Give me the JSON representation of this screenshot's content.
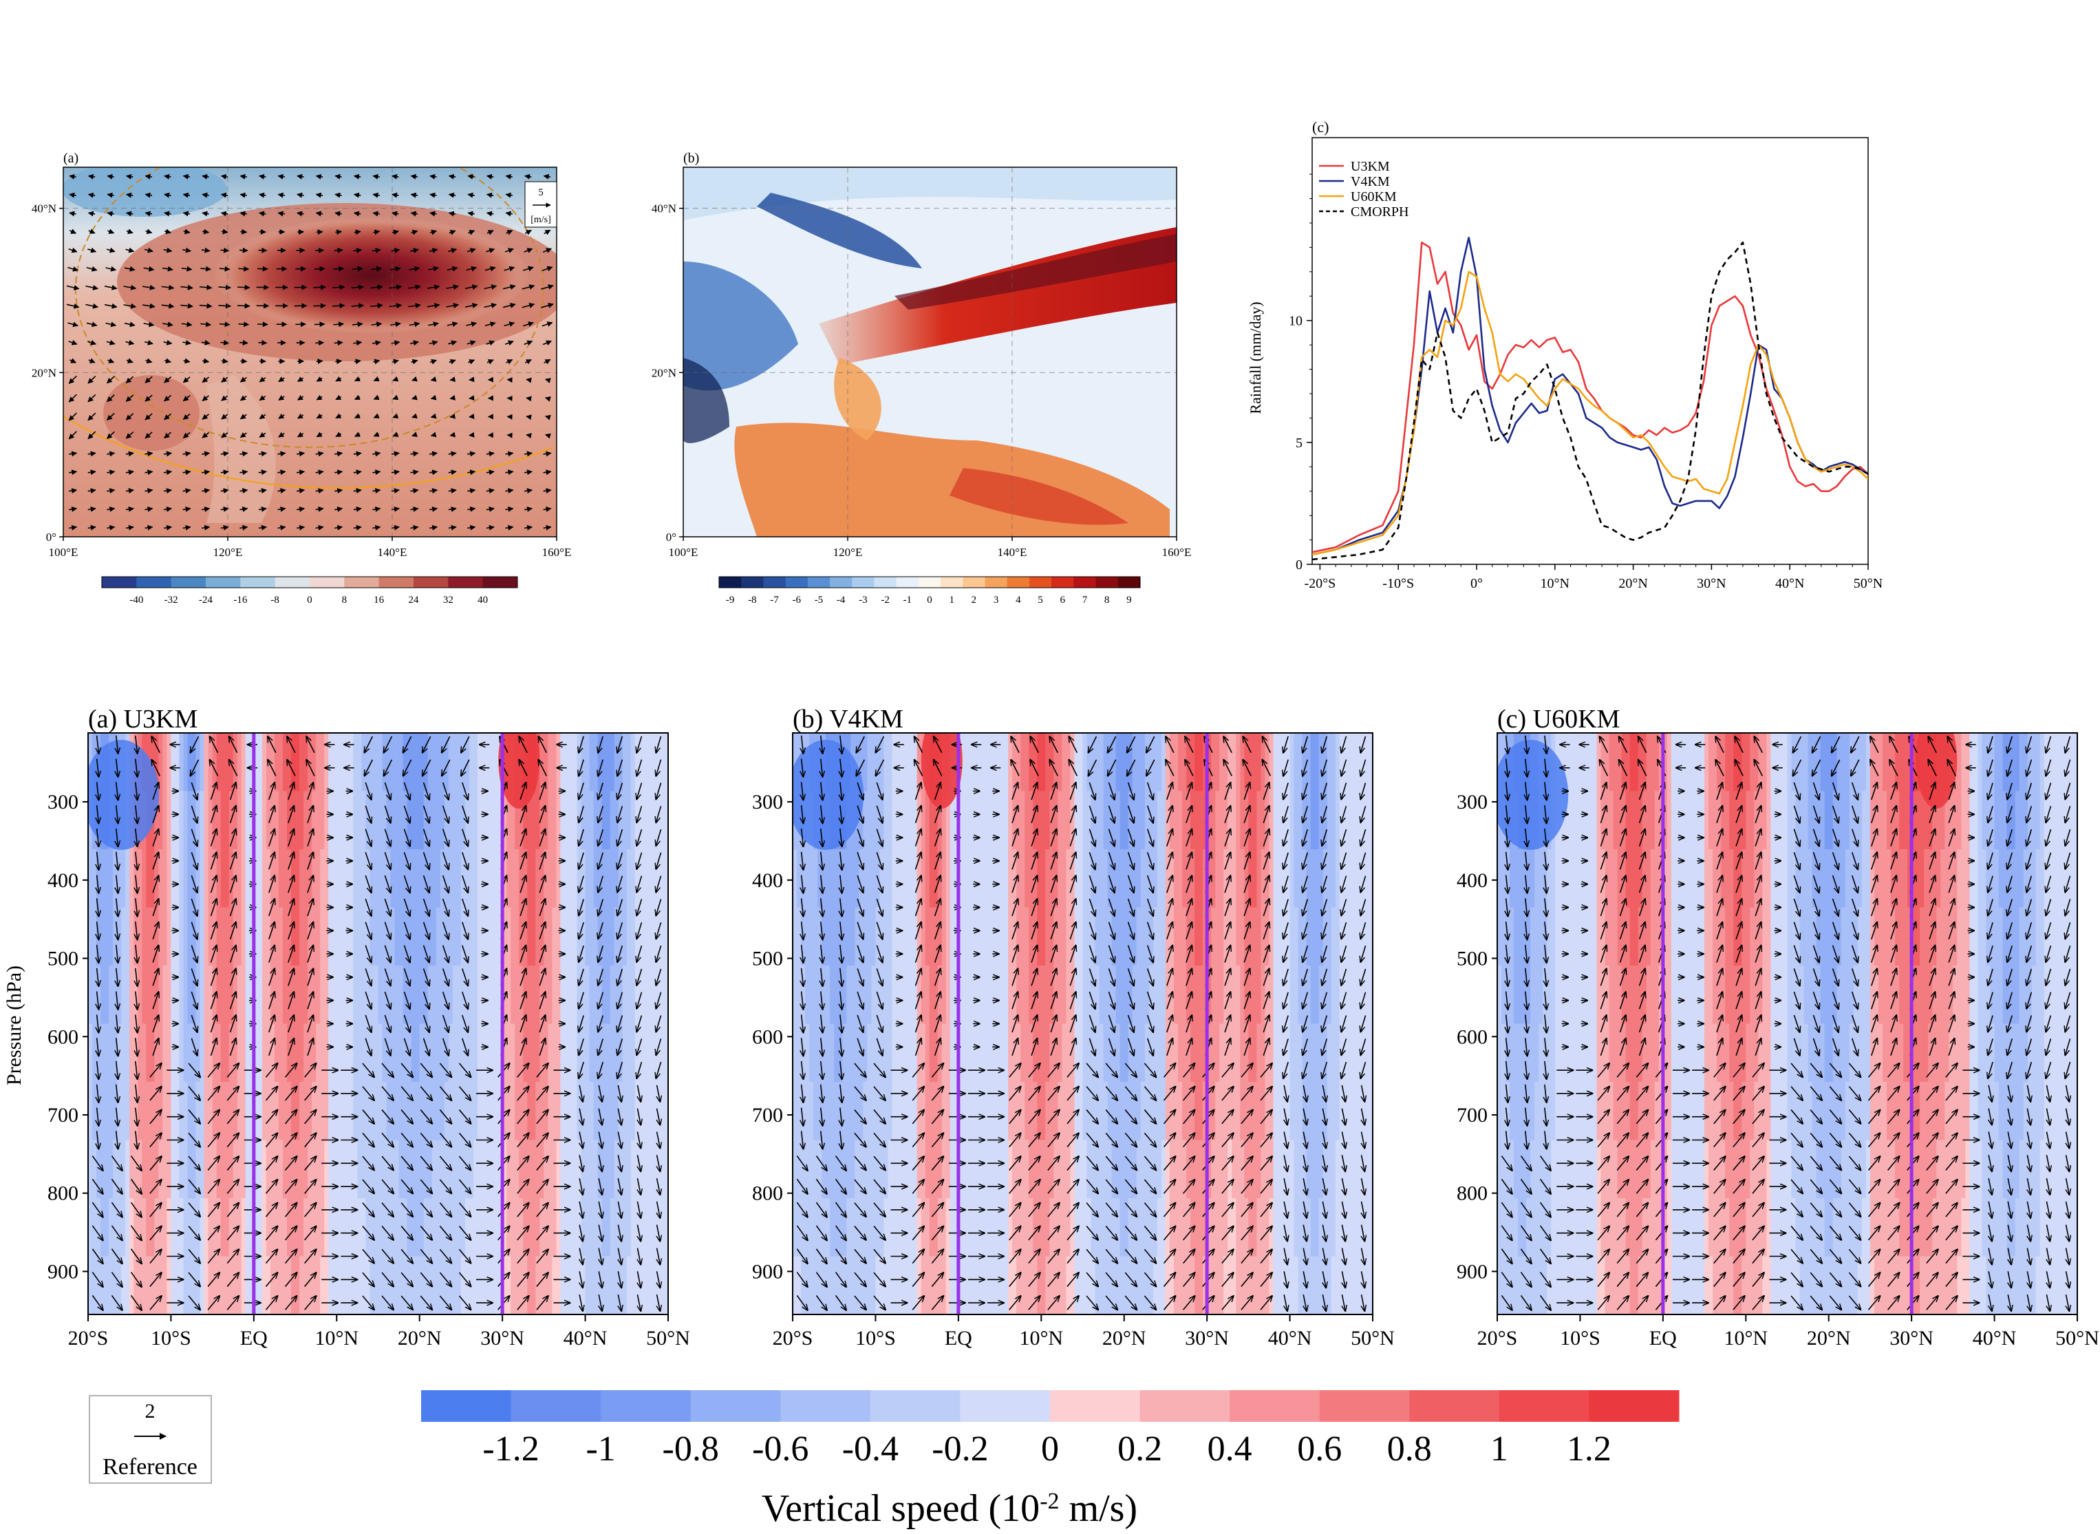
{
  "top": {
    "map_a": {
      "label": "(a)",
      "lat_ticks": [
        "0°",
        "20°N",
        "40°N"
      ],
      "lon_ticks": [
        "100°E",
        "120°E",
        "140°E",
        "160°E"
      ],
      "vector_ref_value": "5",
      "vector_ref_unit": "[m/s]",
      "colorbar_ticks": [
        "-40",
        "-32",
        "-24",
        "-16",
        "-8",
        "0",
        "8",
        "16",
        "24",
        "32",
        "40"
      ],
      "colorbar_colors": [
        "#283c8c",
        "#2f63b1",
        "#4a87c3",
        "#7aaed6",
        "#aecfe4",
        "#dde4ea",
        "#f0d8d2",
        "#e2aa98",
        "#cf7b68",
        "#b4473f",
        "#8f1a28",
        "#6a0f1d"
      ]
    },
    "map_b": {
      "label": "(b)",
      "lat_ticks": [
        "0°",
        "20°N",
        "40°N"
      ],
      "lon_ticks": [
        "100°E",
        "120°E",
        "140°E",
        "160°E"
      ],
      "colorbar_ticks": [
        "-9",
        "-8",
        "-7",
        "-6",
        "-5",
        "-4",
        "-3",
        "-2",
        "-1",
        "0",
        "1",
        "2",
        "3",
        "4",
        "5",
        "6",
        "7",
        "8",
        "9"
      ],
      "colorbar_colors": [
        "#0b1d4f",
        "#1a3578",
        "#2852a0",
        "#3a6fc0",
        "#5a8fd4",
        "#82b0e2",
        "#a9cdee",
        "#cde2f5",
        "#e8f1fa",
        "#fbf6ef",
        "#fde3c6",
        "#fbc690",
        "#f4a35c",
        "#ec7b34",
        "#e5521f",
        "#d62a1a",
        "#b51314",
        "#8a0b0f",
        "#5c0608"
      ]
    },
    "line_c": {
      "label": "(c)"
    }
  },
  "chart_data": [
    {
      "type": "line",
      "panel": "(c)",
      "ylabel": "Rainfall (mm/day)",
      "xlabel": "",
      "x_ticks": [
        "-20°S",
        "-10°S",
        "0°",
        "10°N",
        "20°N",
        "30°N",
        "40°N",
        "50°N"
      ],
      "y_ticks": [
        "0",
        "5",
        "10"
      ],
      "xlim": [
        -21,
        50
      ],
      "ylim": [
        0,
        17.5
      ],
      "legend_position": "top-left",
      "x": [
        -21,
        -18,
        -15,
        -12,
        -10,
        -9,
        -8,
        -7,
        -6,
        -5,
        -4,
        -3,
        -2,
        -1,
        0,
        1,
        2,
        3,
        4,
        5,
        6,
        7,
        8,
        9,
        10,
        11,
        12,
        13,
        14,
        15,
        16,
        17,
        18,
        19,
        20,
        21,
        22,
        23,
        24,
        25,
        26,
        27,
        28,
        29,
        30,
        31,
        32,
        33,
        34,
        35,
        36,
        37,
        38,
        39,
        40,
        41,
        42,
        43,
        44,
        45,
        46,
        47,
        48,
        49,
        50
      ],
      "series": [
        {
          "name": "U3KM",
          "color": "#e8383a",
          "dash": "",
          "values": [
            0.5,
            0.7,
            1.2,
            1.6,
            3,
            6,
            9,
            13.2,
            13.0,
            11.5,
            12.0,
            10.3,
            9.8,
            8.8,
            9.4,
            7.5,
            7.2,
            7.8,
            8.6,
            9.0,
            8.9,
            9.2,
            8.9,
            9.2,
            9.3,
            8.7,
            8.8,
            8.3,
            7.2,
            6.8,
            6.3,
            6.0,
            5.8,
            5.6,
            5.3,
            5.2,
            5.5,
            5.3,
            5.6,
            5.4,
            5.5,
            5.7,
            6.2,
            7.5,
            9.8,
            10.6,
            10.8,
            11.0,
            10.6,
            9.4,
            8.6,
            7.2,
            6.3,
            5.3,
            4.0,
            3.4,
            3.2,
            3.3,
            3.0,
            3.0,
            3.2,
            3.6,
            3.9,
            4.0,
            3.7
          ]
        },
        {
          "name": "V4KM",
          "color": "#1c2a8a",
          "dash": "",
          "values": [
            0.4,
            0.6,
            1.0,
            1.3,
            2.2,
            3.5,
            5.5,
            8.0,
            11.2,
            9.5,
            10.5,
            9.5,
            12.0,
            13.4,
            11.8,
            8.0,
            6.5,
            5.5,
            5.0,
            5.8,
            6.2,
            6.6,
            6.2,
            6.3,
            7.6,
            7.8,
            7.4,
            7.0,
            6.0,
            5.8,
            5.6,
            5.2,
            5.0,
            4.9,
            4.8,
            4.7,
            4.8,
            4.3,
            3.2,
            2.5,
            2.4,
            2.5,
            2.6,
            2.6,
            2.6,
            2.3,
            2.8,
            3.6,
            5.2,
            7.0,
            9.0,
            8.8,
            7.2,
            6.8,
            6.0,
            5.0,
            4.3,
            4.1,
            3.8,
            4.0,
            4.1,
            4.2,
            4.1,
            3.9,
            3.7
          ]
        },
        {
          "name": "U60KM",
          "color": "#f5a20f",
          "dash": "",
          "values": [
            0.4,
            0.6,
            0.9,
            1.2,
            2.0,
            3.5,
            5.5,
            8.5,
            8.8,
            8.5,
            10.0,
            9.8,
            10.5,
            12.0,
            11.8,
            10.5,
            9.5,
            7.8,
            7.5,
            7.8,
            7.6,
            7.2,
            6.8,
            6.5,
            7.2,
            7.6,
            7.4,
            7.2,
            6.8,
            6.5,
            6.3,
            6.0,
            5.8,
            5.5,
            5.2,
            5.3,
            5.0,
            4.5,
            4.0,
            3.6,
            3.5,
            3.4,
            3.5,
            3.1,
            3.0,
            2.9,
            3.5,
            5.0,
            6.5,
            8.2,
            9.0,
            8.6,
            7.5,
            6.8,
            6.0,
            5.0,
            4.3,
            4.0,
            3.8,
            3.9,
            4.0,
            4.1,
            4.0,
            3.8,
            3.5
          ]
        },
        {
          "name": "CMORPH",
          "color": "#000000",
          "dash": "8,6",
          "values": [
            0.2,
            0.3,
            0.4,
            0.6,
            1.5,
            3.5,
            5.8,
            8.4,
            8.0,
            9.5,
            8.5,
            6.3,
            6.0,
            6.8,
            7.2,
            6.3,
            5.0,
            5.2,
            5.4,
            6.8,
            7.0,
            7.5,
            7.8,
            8.2,
            7.2,
            6.0,
            5.2,
            4.0,
            3.5,
            2.5,
            1.6,
            1.5,
            1.3,
            1.1,
            1.0,
            1.1,
            1.3,
            1.4,
            1.5,
            2.0,
            2.6,
            3.5,
            5.5,
            8.5,
            11.0,
            12.0,
            12.5,
            12.8,
            13.2,
            11.5,
            9.0,
            7.0,
            6.0,
            5.2,
            4.8,
            4.4,
            4.2,
            4.0,
            3.9,
            3.8,
            3.9,
            4.0,
            4.0,
            3.9,
            3.7
          ]
        }
      ]
    },
    {
      "type": "heatmap",
      "panels": [
        {
          "label": "(a) U3KM",
          "up_bands": [
            [
              -15,
              -10
            ],
            [
              -6,
              -1
            ],
            [
              1,
              9
            ],
            [
              30,
              37
            ]
          ],
          "dn_bands": [
            [
              -21,
              -15
            ],
            [
              -9,
              -6
            ],
            [
              12,
              27
            ],
            [
              39,
              46
            ]
          ],
          "peak_lat": 32
        },
        {
          "label": "(b) V4KM",
          "up_bands": [
            [
              -5,
              -1
            ],
            [
              6,
              14
            ],
            [
              25,
              33
            ],
            [
              33,
              38
            ]
          ],
          "dn_bands": [
            [
              -21,
              -8
            ],
            [
              15,
              25
            ],
            [
              40,
              46
            ]
          ],
          "peak_lat": -2
        },
        {
          "label": "(c) U60KM",
          "up_bands": [
            [
              -8,
              1
            ],
            [
              5,
              13
            ],
            [
              24,
              37
            ]
          ],
          "dn_bands": [
            [
              -21,
              -13
            ],
            [
              15,
              25
            ],
            [
              38,
              46
            ]
          ],
          "peak_lat": 33
        }
      ],
      "ylabel": "Pressure (hPa)",
      "y_ticks": [
        "300",
        "400",
        "500",
        "600",
        "700",
        "800",
        "900"
      ],
      "ylim": [
        1000,
        200
      ],
      "x_ticks": [
        "20°S",
        "10°S",
        "EQ",
        "10°N",
        "20°N",
        "30°N",
        "40°N",
        "50°N"
      ],
      "xlim": [
        -20,
        50
      ],
      "reference_lines_lat": [
        0,
        30
      ],
      "colorbar_label": "Vertical speed (10",
      "colorbar_label_sup": "-2",
      "colorbar_label_tail": " m/s)",
      "colorbar_ticks": [
        "-1.2",
        "-1",
        "-0.8",
        "-0.6",
        "-0.4",
        "-0.2",
        "0",
        "0.2",
        "0.4",
        "0.6",
        "0.8",
        "1",
        "1.2"
      ],
      "colorbar_colors": [
        "#4d7ef0",
        "#6b8ff1",
        "#7a9cf3",
        "#93aff5",
        "#a9bff7",
        "#bccdf8",
        "#d2dcfa",
        "#fccfd2",
        "#f9b0b4",
        "#f69499",
        "#f37b80",
        "#f05f64",
        "#ee4a4f",
        "#ea3a3f"
      ],
      "reference_vector_value": "2",
      "reference_vector_label": "Reference"
    }
  ]
}
